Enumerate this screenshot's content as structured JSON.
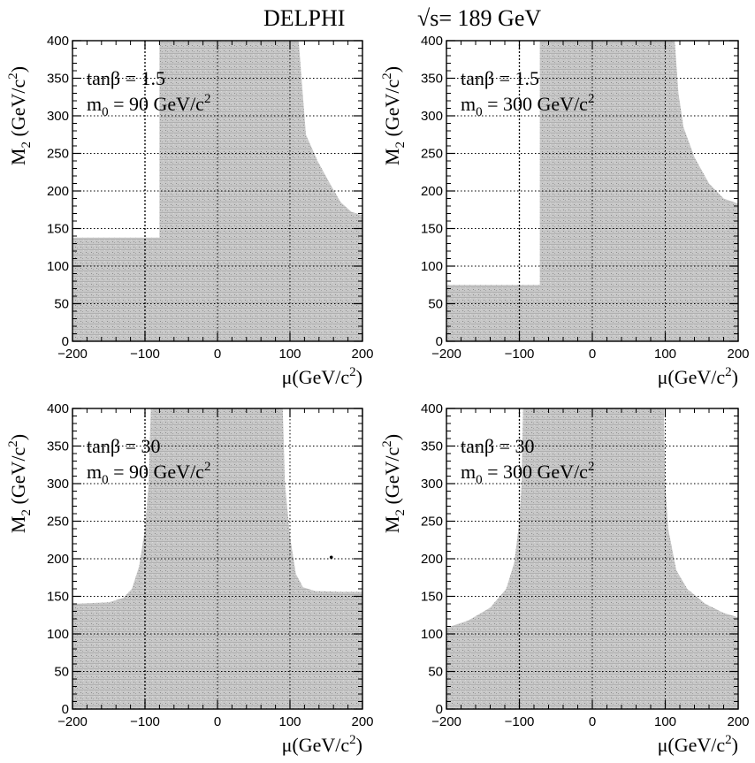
{
  "figure": {
    "title_experiment": "DELPHI",
    "title_energy": "√s= 189 GeV"
  },
  "chart_data": [
    {
      "type": "area",
      "annotation": {
        "line1": "tanβ = 1.5",
        "line2_main": "m",
        "line2_sub": "0",
        "line2_rest": " = 90 GeV/c",
        "line2_sup": "2"
      },
      "xlabel": {
        "main": "μ(GeV/c",
        "sup": "2",
        "close": ")"
      },
      "ylabel": {
        "main": "M",
        "sub": "2",
        "rest": " (GeV/c",
        "sup": "2",
        "close": ")"
      },
      "xlim": [
        -200,
        200
      ],
      "ylim": [
        0,
        400
      ],
      "xticks": [
        "-200",
        "-100",
        "0",
        "100",
        "200"
      ],
      "yticks": [
        "0",
        "50",
        "100",
        "150",
        "200",
        "250",
        "300",
        "350",
        "400"
      ],
      "grid": true,
      "reference_line_x": -100,
      "excluded_region": [
        [
          -200,
          0
        ],
        [
          -200,
          138
        ],
        [
          -80,
          138
        ],
        [
          -80,
          400
        ],
        [
          112,
          400
        ],
        [
          122,
          275
        ],
        [
          138,
          240
        ],
        [
          155,
          210
        ],
        [
          170,
          185
        ],
        [
          185,
          172
        ],
        [
          200,
          168
        ],
        [
          200,
          0
        ]
      ],
      "isolated_points": []
    },
    {
      "type": "area",
      "annotation": {
        "line1": "tanβ = 1.5",
        "line2_main": "m",
        "line2_sub": "0",
        "line2_rest": " = 300 GeV/c",
        "line2_sup": "2"
      },
      "xlabel": {
        "main": "μ(GeV/c",
        "sup": "2",
        "close": ")"
      },
      "ylabel": {
        "main": "M",
        "sub": "2",
        "rest": " (GeV/c",
        "sup": "2",
        "close": ")"
      },
      "xlim": [
        -200,
        200
      ],
      "ylim": [
        0,
        400
      ],
      "xticks": [
        "-200",
        "-100",
        "0",
        "100",
        "200"
      ],
      "yticks": [
        "0",
        "50",
        "100",
        "150",
        "200",
        "250",
        "300",
        "350",
        "400"
      ],
      "grid": true,
      "reference_line_x": -100,
      "excluded_region": [
        [
          -200,
          0
        ],
        [
          -200,
          75
        ],
        [
          -72,
          75
        ],
        [
          -72,
          400
        ],
        [
          113,
          400
        ],
        [
          118,
          330
        ],
        [
          125,
          285
        ],
        [
          140,
          245
        ],
        [
          160,
          210
        ],
        [
          180,
          190
        ],
        [
          200,
          183
        ],
        [
          200,
          0
        ]
      ],
      "isolated_points": []
    },
    {
      "type": "area",
      "annotation": {
        "line1": "tanβ = 30",
        "line2_main": "m",
        "line2_sub": "0",
        "line2_rest": " = 90 GeV/c",
        "line2_sup": "2"
      },
      "xlabel": {
        "main": "μ(GeV/c",
        "sup": "2",
        "close": ")"
      },
      "ylabel": {
        "main": "M",
        "sub": "2",
        "rest": " (GeV/c",
        "sup": "2",
        "close": ")"
      },
      "xlim": [
        -200,
        200
      ],
      "ylim": [
        0,
        400
      ],
      "xticks": [
        "-200",
        "-100",
        "0",
        "100",
        "200"
      ],
      "yticks": [
        "0",
        "50",
        "100",
        "150",
        "200",
        "250",
        "300",
        "350",
        "400"
      ],
      "grid": true,
      "reference_line_x": -100,
      "excluded_region": [
        [
          -200,
          0
        ],
        [
          -200,
          140
        ],
        [
          -150,
          142
        ],
        [
          -130,
          148
        ],
        [
          -118,
          160
        ],
        [
          -108,
          190
        ],
        [
          -100,
          240
        ],
        [
          -95,
          300
        ],
        [
          -92,
          400
        ],
        [
          90,
          400
        ],
        [
          93,
          300
        ],
        [
          100,
          230
        ],
        [
          108,
          180
        ],
        [
          118,
          162
        ],
        [
          135,
          157
        ],
        [
          170,
          156
        ],
        [
          200,
          156
        ],
        [
          200,
          0
        ]
      ],
      "isolated_points": [
        [
          157,
          202
        ]
      ]
    },
    {
      "type": "area",
      "annotation": {
        "line1": "tanβ = 30",
        "line2_main": "m",
        "line2_sub": "0",
        "line2_rest": " = 300 GeV/c",
        "line2_sup": "2"
      },
      "xlabel": {
        "main": "μ(GeV/c",
        "sup": "2",
        "close": ")"
      },
      "ylabel": {
        "main": "M",
        "sub": "2",
        "rest": " (GeV/c",
        "sup": "2",
        "close": ")"
      },
      "xlim": [
        -200,
        200
      ],
      "ylim": [
        0,
        400
      ],
      "xticks": [
        "-200",
        "-100",
        "0",
        "100",
        "200"
      ],
      "yticks": [
        "0",
        "50",
        "100",
        "150",
        "200",
        "250",
        "300",
        "350",
        "400"
      ],
      "grid": true,
      "reference_line_x": -100,
      "excluded_region": [
        [
          -200,
          0
        ],
        [
          -200,
          108
        ],
        [
          -170,
          118
        ],
        [
          -140,
          135
        ],
        [
          -118,
          160
        ],
        [
          -107,
          195
        ],
        [
          -100,
          250
        ],
        [
          -97,
          300
        ],
        [
          -95,
          400
        ],
        [
          98,
          400
        ],
        [
          100,
          300
        ],
        [
          104,
          240
        ],
        [
          115,
          185
        ],
        [
          130,
          160
        ],
        [
          155,
          140
        ],
        [
          180,
          128
        ],
        [
          200,
          122
        ],
        [
          200,
          0
        ]
      ],
      "isolated_points": []
    }
  ],
  "colors": {
    "region_fill": "#c4c4c4",
    "region_dark": "#8a8a8a",
    "axis": "#000000",
    "grid": "#000000"
  }
}
